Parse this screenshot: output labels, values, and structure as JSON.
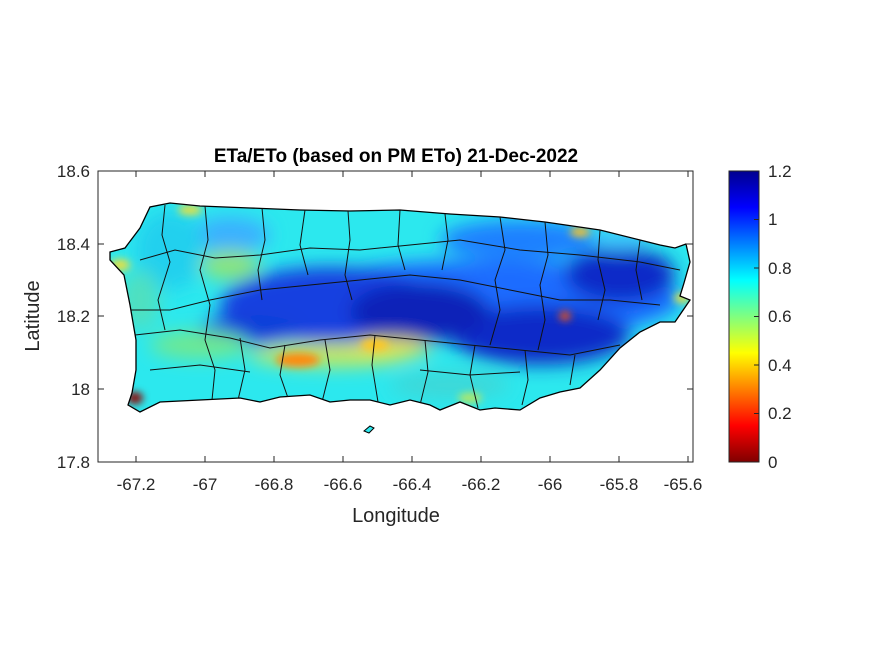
{
  "chart_data": {
    "type": "heatmap",
    "title": "ETa/ETo (based on PM ETo) 21-Dec-2022",
    "xlabel": "Longitude",
    "ylabel": "Latitude",
    "xlim": [
      -67.3,
      -65.58
    ],
    "ylim": [
      17.8,
      18.6
    ],
    "x_ticks": [
      "-67.2",
      "-67",
      "-66.8",
      "-66.6",
      "-66.4",
      "-66.2",
      "-66",
      "-65.8",
      "-65.6"
    ],
    "y_ticks": [
      "18.6",
      "18.4",
      "18.2",
      "18",
      "17.8"
    ],
    "colorbar": {
      "colormap": "jet",
      "range": [
        0,
        1.2
      ],
      "ticks": [
        "1.2",
        "1",
        "0.8",
        "0.6",
        "0.4",
        "0.2",
        "0"
      ]
    },
    "grid": false
  }
}
